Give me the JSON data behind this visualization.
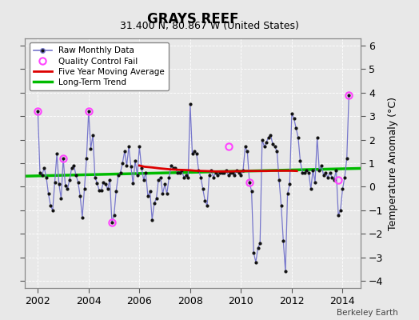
{
  "title": "GRAYS REEF",
  "subtitle": "31.400 N, 80.867 W (United States)",
  "ylabel": "Temperature Anomaly (°C)",
  "attribution": "Berkeley Earth",
  "xlim": [
    2001.5,
    2014.7
  ],
  "ylim": [
    -4.3,
    6.3
  ],
  "yticks": [
    -4,
    -3,
    -2,
    -1,
    0,
    1,
    2,
    3,
    4,
    5,
    6
  ],
  "xticks": [
    2002,
    2004,
    2006,
    2008,
    2010,
    2012,
    2014
  ],
  "bg_color": "#e8e8e8",
  "plot_bg": "#e8e8e8",
  "raw_color": "#7777cc",
  "dot_color": "#111111",
  "qc_color": "#ff44ff",
  "ma_color": "#dd0000",
  "trend_color": "#00bb00",
  "raw_monthly_x": [
    2002.0,
    2002.083,
    2002.167,
    2002.25,
    2002.333,
    2002.417,
    2002.5,
    2002.583,
    2002.667,
    2002.75,
    2002.833,
    2002.917,
    2003.0,
    2003.083,
    2003.167,
    2003.25,
    2003.333,
    2003.417,
    2003.5,
    2003.583,
    2003.667,
    2003.75,
    2003.833,
    2003.917,
    2004.0,
    2004.083,
    2004.167,
    2004.25,
    2004.333,
    2004.417,
    2004.5,
    2004.583,
    2004.667,
    2004.75,
    2004.833,
    2004.917,
    2005.0,
    2005.083,
    2005.167,
    2005.25,
    2005.333,
    2005.417,
    2005.5,
    2005.583,
    2005.667,
    2005.75,
    2005.833,
    2005.917,
    2006.0,
    2006.083,
    2006.167,
    2006.25,
    2006.333,
    2006.417,
    2006.5,
    2006.583,
    2006.667,
    2006.75,
    2006.833,
    2006.917,
    2007.0,
    2007.083,
    2007.167,
    2007.25,
    2007.333,
    2007.417,
    2007.5,
    2007.583,
    2007.667,
    2007.75,
    2007.833,
    2007.917,
    2008.0,
    2008.083,
    2008.167,
    2008.25,
    2008.333,
    2008.417,
    2008.5,
    2008.583,
    2008.667,
    2008.75,
    2008.833,
    2008.917,
    2009.0,
    2009.083,
    2009.167,
    2009.25,
    2009.333,
    2009.417,
    2009.5,
    2009.583,
    2009.667,
    2009.75,
    2009.833,
    2009.917,
    2010.0,
    2010.083,
    2010.167,
    2010.25,
    2010.333,
    2010.417,
    2010.5,
    2010.583,
    2010.667,
    2010.75,
    2010.833,
    2010.917,
    2011.0,
    2011.083,
    2011.167,
    2011.25,
    2011.333,
    2011.417,
    2011.5,
    2011.583,
    2011.667,
    2011.75,
    2011.833,
    2011.917,
    2012.0,
    2012.083,
    2012.167,
    2012.25,
    2012.333,
    2012.417,
    2012.5,
    2012.583,
    2012.667,
    2012.75,
    2012.833,
    2012.917,
    2013.0,
    2013.083,
    2013.167,
    2013.25,
    2013.333,
    2013.417,
    2013.5,
    2013.583,
    2013.667,
    2013.75,
    2013.833,
    2013.917,
    2014.0,
    2014.083,
    2014.167,
    2014.25
  ],
  "raw_monthly_y": [
    3.2,
    0.6,
    0.5,
    0.8,
    0.4,
    -0.3,
    -0.8,
    -1.0,
    0.2,
    1.4,
    0.1,
    -0.5,
    1.2,
    0.05,
    -0.1,
    0.3,
    0.8,
    0.9,
    0.5,
    0.2,
    -0.4,
    -1.3,
    -0.1,
    1.2,
    3.2,
    1.6,
    2.2,
    0.4,
    0.15,
    -0.15,
    -0.15,
    0.2,
    0.1,
    -0.1,
    0.3,
    -1.5,
    -1.2,
    -0.2,
    0.5,
    0.6,
    1.0,
    1.5,
    0.9,
    1.7,
    0.85,
    0.15,
    1.1,
    0.5,
    1.7,
    0.8,
    0.3,
    0.6,
    -0.4,
    -0.2,
    -1.4,
    -0.7,
    -0.5,
    0.3,
    0.4,
    -0.3,
    0.1,
    -0.3,
    0.4,
    0.9,
    0.8,
    0.8,
    0.6,
    0.6,
    0.7,
    0.4,
    0.5,
    0.4,
    3.5,
    1.4,
    1.5,
    1.4,
    0.7,
    0.4,
    -0.1,
    -0.6,
    -0.8,
    0.5,
    0.7,
    0.4,
    0.6,
    0.5,
    0.6,
    0.6,
    0.6,
    0.7,
    0.5,
    0.6,
    0.6,
    0.5,
    0.7,
    0.6,
    0.5,
    0.7,
    1.7,
    1.5,
    0.2,
    -0.2,
    -2.8,
    -3.2,
    -2.6,
    -2.4,
    2.0,
    1.7,
    1.9,
    2.1,
    2.2,
    1.8,
    1.7,
    1.5,
    0.3,
    -0.8,
    -2.3,
    -3.6,
    -0.3,
    0.1,
    3.1,
    2.9,
    2.5,
    2.1,
    1.1,
    0.6,
    0.6,
    0.7,
    0.6,
    -0.1,
    0.7,
    0.2,
    2.1,
    0.7,
    0.9,
    0.5,
    0.6,
    0.4,
    0.6,
    0.4,
    0.3,
    0.7,
    -1.2,
    -1.0,
    -0.1,
    0.4,
    1.2,
    3.9
  ],
  "qc_fail_x": [
    2002.0,
    2003.0,
    2004.0,
    2004.917,
    2009.5,
    2010.333,
    2013.833,
    2014.25
  ],
  "qc_fail_y": [
    3.2,
    1.2,
    3.2,
    -1.5,
    1.7,
    0.2,
    0.3,
    3.9
  ],
  "ma_x": [
    2006.0,
    2006.2,
    2006.5,
    2006.8,
    2007.0,
    2007.2,
    2007.5,
    2007.8,
    2008.0,
    2008.2,
    2008.5,
    2008.8,
    2009.0,
    2009.2,
    2009.5,
    2009.8,
    2010.0,
    2010.2,
    2010.5,
    2010.8,
    2011.0,
    2011.2,
    2011.5,
    2011.8,
    2012.0,
    2012.2
  ],
  "ma_y": [
    0.9,
    0.85,
    0.82,
    0.78,
    0.76,
    0.74,
    0.72,
    0.71,
    0.7,
    0.68,
    0.67,
    0.66,
    0.65,
    0.65,
    0.65,
    0.66,
    0.66,
    0.67,
    0.67,
    0.67,
    0.67,
    0.68,
    0.68,
    0.68,
    0.68,
    0.67
  ],
  "trend_x": [
    2001.5,
    2014.7
  ],
  "trend_y": [
    0.45,
    0.78
  ]
}
